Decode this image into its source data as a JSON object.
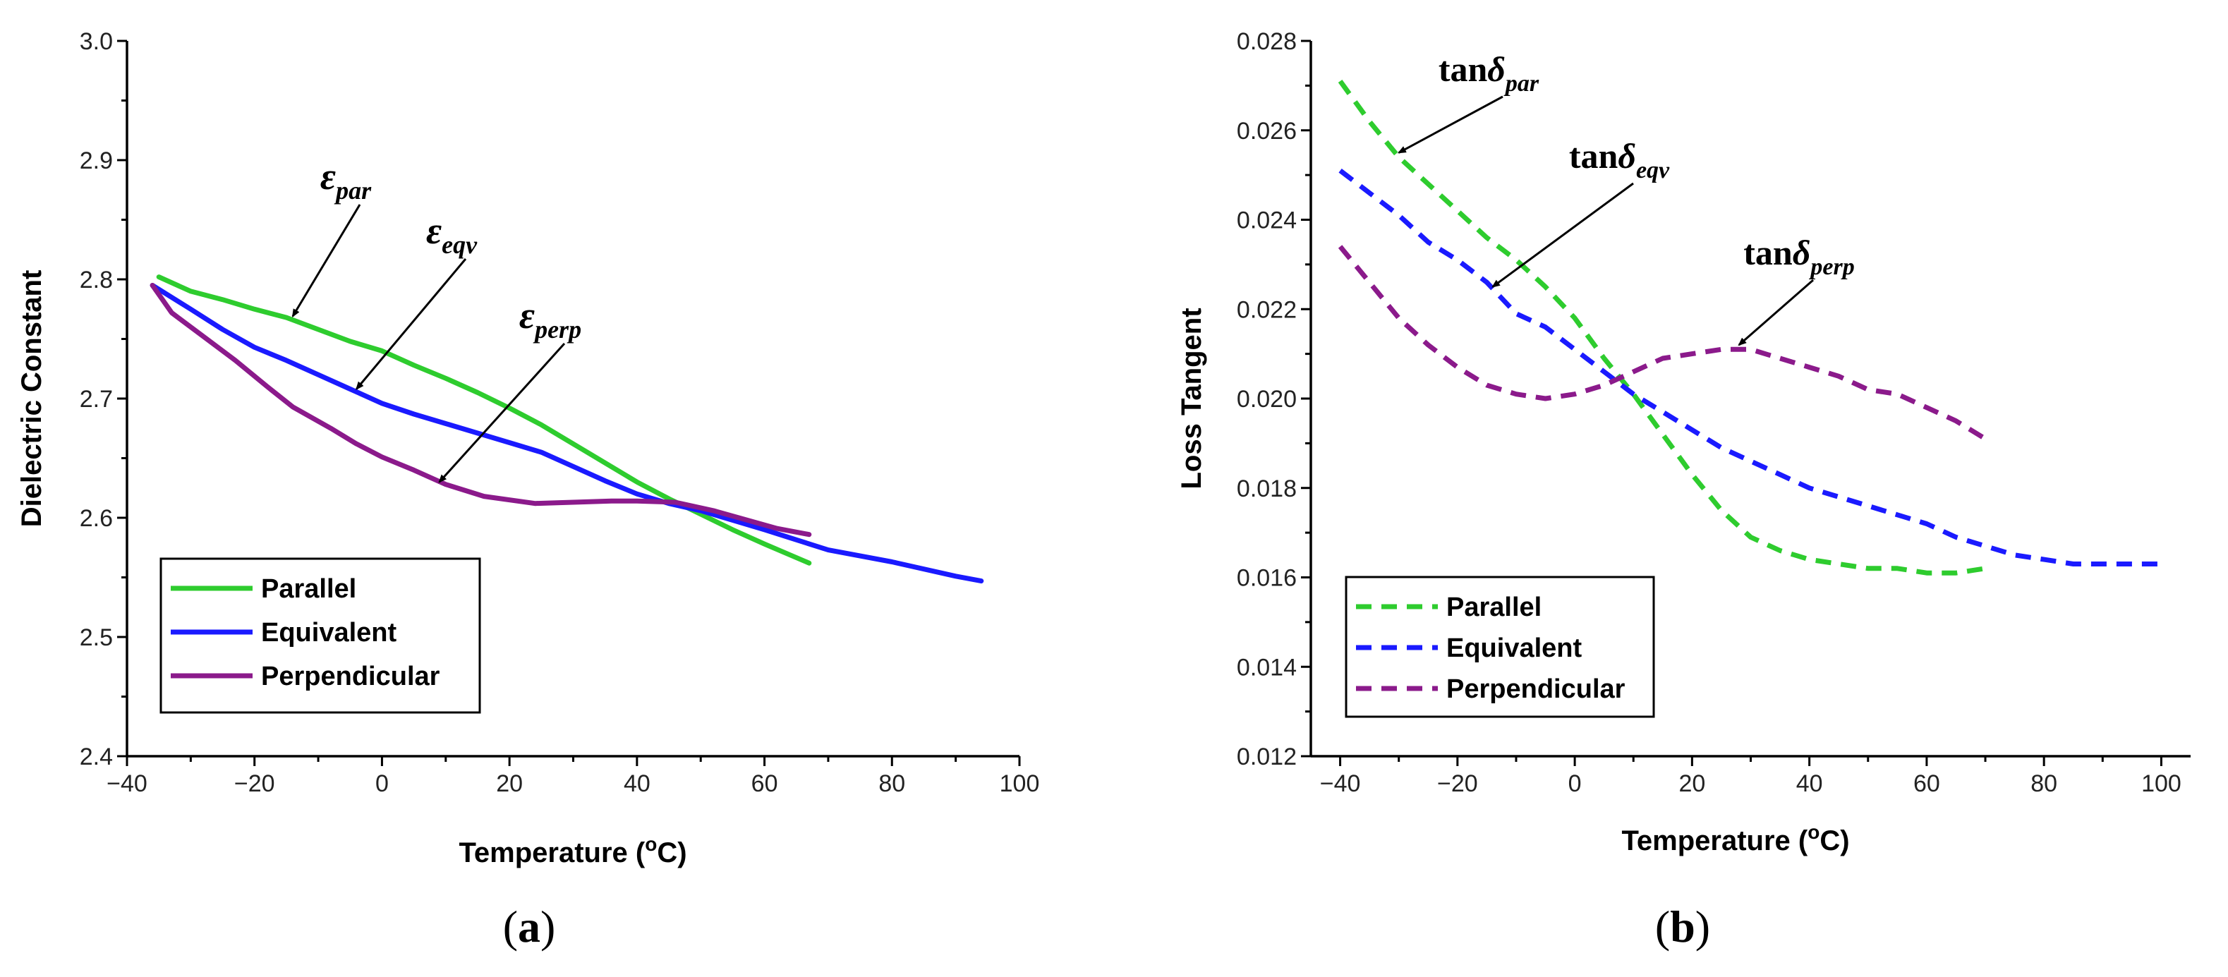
{
  "chart_data": [
    {
      "type": "line",
      "panel_label": "a",
      "xlabel": "Temperature (",
      "xlabel_sup": "o",
      "xlabel_end": "C)",
      "ylabel": "Dielectric Constant",
      "xlim": [
        -40,
        100
      ],
      "ylim": [
        2.4,
        3.0
      ],
      "xticks": [
        -40,
        -20,
        0,
        20,
        40,
        60,
        80,
        100
      ],
      "xtick_labels": [
        "−40",
        "−20",
        "0",
        "20",
        "40",
        "60",
        "80",
        "100"
      ],
      "yticks": [
        2.4,
        2.5,
        2.6,
        2.7,
        2.8,
        2.9,
        3.0
      ],
      "ytick_labels": [
        "2.4",
        "2.5",
        "2.6",
        "2.7",
        "2.8",
        "2.9",
        "3.0"
      ],
      "line_style": "solid",
      "legend_position": "bottom-left",
      "series": [
        {
          "name": "Parallel",
          "color": "#2ecc2e",
          "x": [
            -35,
            -30,
            -25,
            -20,
            -15,
            -10,
            -5,
            0,
            5,
            10,
            15,
            20,
            25,
            30,
            35,
            40,
            45,
            50,
            55,
            60,
            67
          ],
          "y": [
            2.802,
            2.79,
            2.783,
            2.775,
            2.768,
            2.758,
            2.748,
            2.74,
            2.728,
            2.717,
            2.705,
            2.692,
            2.678,
            2.662,
            2.646,
            2.63,
            2.616,
            2.603,
            2.59,
            2.578,
            2.562
          ]
        },
        {
          "name": "Equivalent",
          "color": "#1a1aff",
          "x": [
            -36,
            -30,
            -25,
            -20,
            -15,
            -10,
            -5,
            0,
            5,
            10,
            15,
            20,
            25,
            30,
            35,
            40,
            45,
            50,
            60,
            70,
            80,
            90,
            94
          ],
          "y": [
            2.795,
            2.775,
            2.758,
            2.743,
            2.732,
            2.72,
            2.708,
            2.696,
            2.687,
            2.679,
            2.671,
            2.663,
            2.655,
            2.643,
            2.631,
            2.62,
            2.612,
            2.606,
            2.59,
            2.573,
            2.563,
            2.551,
            2.547
          ]
        },
        {
          "name": "Perpendicular",
          "color": "#8b1a8b",
          "x": [
            -36,
            -33,
            -28,
            -23,
            -18,
            -14,
            -8,
            -4,
            0,
            5,
            10,
            16,
            24,
            30,
            36,
            40,
            46,
            52,
            58,
            62,
            67
          ],
          "y": [
            2.795,
            2.772,
            2.752,
            2.732,
            2.71,
            2.693,
            2.675,
            2.662,
            2.651,
            2.64,
            2.628,
            2.618,
            2.612,
            2.613,
            2.614,
            2.614,
            2.613,
            2.606,
            2.597,
            2.591,
            2.586
          ]
        }
      ],
      "annotations": [
        {
          "symbol": "ε",
          "sub": "par",
          "arrow_to": [
            -14,
            2.769
          ]
        },
        {
          "symbol": "ε",
          "sub": "eqv",
          "arrow_to": [
            -4,
            2.708
          ]
        },
        {
          "symbol": "ε",
          "sub": "perp",
          "arrow_to": [
            9,
            2.63
          ]
        }
      ]
    },
    {
      "type": "line",
      "panel_label": "b",
      "xlabel": "Temperature (",
      "xlabel_sup": "o",
      "xlabel_end": "C)",
      "ylabel": "Loss Tangent",
      "xlim": [
        -45,
        105
      ],
      "ylim": [
        0.012,
        0.028
      ],
      "xticks": [
        -40,
        -20,
        0,
        20,
        40,
        60,
        80,
        100
      ],
      "xtick_labels": [
        "−40",
        "−20",
        "0",
        "20",
        "40",
        "60",
        "80",
        "100"
      ],
      "yticks": [
        0.012,
        0.014,
        0.016,
        0.018,
        0.02,
        0.022,
        0.024,
        0.026,
        0.028
      ],
      "ytick_labels": [
        "0.012",
        "0.014",
        "0.016",
        "0.018",
        "0.020",
        "0.022",
        "0.024",
        "0.026",
        "0.028"
      ],
      "line_style": "dashed",
      "legend_position": "bottom-left",
      "series": [
        {
          "name": "Parallel",
          "color": "#2ecc2e",
          "x": [
            -40,
            -35,
            -30,
            -25,
            -20,
            -15,
            -10,
            -5,
            0,
            5,
            10,
            15,
            20,
            25,
            30,
            35,
            40,
            45,
            50,
            55,
            60,
            65,
            70
          ],
          "y": [
            0.0271,
            0.0262,
            0.0254,
            0.0248,
            0.0242,
            0.0236,
            0.0231,
            0.0225,
            0.0218,
            0.0209,
            0.0201,
            0.0192,
            0.0183,
            0.0175,
            0.0169,
            0.0166,
            0.0164,
            0.0163,
            0.0162,
            0.0162,
            0.0161,
            0.0161,
            0.0162
          ]
        },
        {
          "name": "Equivalent",
          "color": "#1a1aff",
          "x": [
            -40,
            -35,
            -30,
            -25,
            -20,
            -15,
            -10,
            -5,
            0,
            5,
            10,
            15,
            20,
            25,
            30,
            35,
            40,
            45,
            50,
            55,
            60,
            65,
            70,
            75,
            80,
            85,
            90,
            95,
            100
          ],
          "y": [
            0.0251,
            0.0246,
            0.0241,
            0.0235,
            0.0231,
            0.0226,
            0.0219,
            0.0216,
            0.0211,
            0.0206,
            0.0201,
            0.0197,
            0.0193,
            0.0189,
            0.0186,
            0.0183,
            0.018,
            0.0178,
            0.0176,
            0.0174,
            0.0172,
            0.0169,
            0.0167,
            0.0165,
            0.0164,
            0.0163,
            0.0163,
            0.0163,
            0.0163
          ]
        },
        {
          "name": "Perpendicular",
          "color": "#8b1a8b",
          "x": [
            -40,
            -35,
            -30,
            -25,
            -20,
            -15,
            -10,
            -5,
            0,
            5,
            10,
            15,
            20,
            25,
            30,
            35,
            40,
            45,
            50,
            55,
            60,
            65,
            70
          ],
          "y": [
            0.0234,
            0.0226,
            0.0218,
            0.0212,
            0.0207,
            0.0203,
            0.0201,
            0.02,
            0.0201,
            0.0203,
            0.0206,
            0.0209,
            0.021,
            0.0211,
            0.0211,
            0.0209,
            0.0207,
            0.0205,
            0.0202,
            0.0201,
            0.0198,
            0.0195,
            0.0191
          ]
        }
      ],
      "annotations": [
        {
          "symbol": "tanδ",
          "sub": "par",
          "arrow_to": [
            -30,
            0.0255
          ]
        },
        {
          "symbol": "tanδ",
          "sub": "eqv",
          "arrow_to": [
            -14,
            0.0225
          ]
        },
        {
          "symbol": "tanδ",
          "sub": "perp",
          "arrow_to": [
            28,
            0.0212
          ]
        }
      ]
    }
  ]
}
